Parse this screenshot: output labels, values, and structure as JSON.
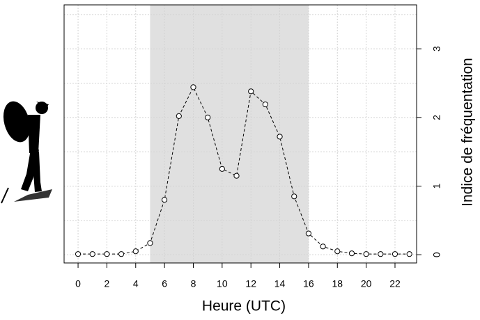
{
  "chart_data": {
    "type": "line",
    "x_label": "Heure (UTC)",
    "y_label": "Indice de fréquentation",
    "x": [
      0,
      1,
      2,
      3,
      4,
      5,
      6,
      7,
      8,
      9,
      10,
      11,
      12,
      13,
      14,
      15,
      16,
      17,
      18,
      19,
      20,
      21,
      22,
      23
    ],
    "series": [
      {
        "color": "#000000",
        "values": [
          0.01,
          0.01,
          0.01,
          0.01,
          0.05,
          0.17,
          0.8,
          2.02,
          2.44,
          2.0,
          1.25,
          1.15,
          2.38,
          2.19,
          1.72,
          0.85,
          0.31,
          0.12,
          0.05,
          0.02,
          0.01,
          0.01,
          0.01,
          0.01
        ]
      }
    ],
    "xlim": [
      -0.97,
      23.5
    ],
    "ylim": [
      -0.12,
      3.64
    ],
    "xticks": [
      0,
      2,
      4,
      6,
      8,
      10,
      12,
      14,
      16,
      18,
      20,
      22
    ],
    "yticks": [
      0,
      1,
      2,
      3
    ],
    "ygrid": [
      0,
      0.5,
      1,
      1.5,
      2,
      2.5,
      3,
      3.5
    ],
    "grid": true,
    "shade": [
      5,
      16
    ],
    "shade_color": "#e0e0e0"
  }
}
